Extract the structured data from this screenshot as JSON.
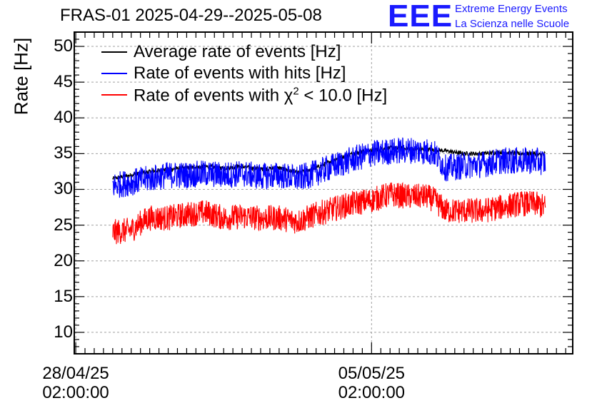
{
  "chart_data": {
    "type": "line",
    "title": "FRAS-01 2025-04-29--2025-05-08",
    "ylabel": "Rate [Hz]",
    "xlabel": "",
    "ylim": [
      7,
      52
    ],
    "yticks": [
      10,
      15,
      20,
      25,
      30,
      35,
      40,
      45,
      50
    ],
    "ytick_labels": [
      "10",
      "15",
      "20",
      "25",
      "30",
      "35",
      "40",
      "45",
      "50"
    ],
    "xlim_days": [
      -0.02,
      6.72
    ],
    "x_unit": "days since 28/04/25 02:00:00",
    "xticks": [
      {
        "value": 0,
        "line1": "28/04/25",
        "line2": "02:00:00"
      },
      {
        "value": 4,
        "line1": "05/05/25",
        "line2": "02:00:00"
      }
    ],
    "grid": true,
    "legend_position": "top-left",
    "series": [
      {
        "name": "Average rate of events [Hz]",
        "color": "#000000",
        "x": [
          0.5,
          0.75,
          1.0,
          1.25,
          1.5,
          1.75,
          2.0,
          2.25,
          2.5,
          2.75,
          3.0,
          3.25,
          3.5,
          3.75,
          4.0,
          4.25,
          4.5,
          4.75,
          5.0,
          5.25,
          5.5,
          5.75,
          6.0,
          6.25,
          6.2,
          6.35
        ],
        "values": [
          31.5,
          32.0,
          32.5,
          32.8,
          33.0,
          33.2,
          33.0,
          33.2,
          32.8,
          33.0,
          32.3,
          33.0,
          34.2,
          35.0,
          35.5,
          35.8,
          35.7,
          35.6,
          35.4,
          35.0,
          35.0,
          35.2,
          35.0,
          34.8,
          35.0,
          35.0
        ],
        "noise": 0.6
      },
      {
        "name": "Rate of events with hits [Hz]",
        "color": "#0000ff",
        "x": [
          0.5,
          0.75,
          1.0,
          1.25,
          1.5,
          1.75,
          2.0,
          2.25,
          2.5,
          2.75,
          3.0,
          3.25,
          3.5,
          3.75,
          4.0,
          4.25,
          4.5,
          4.75,
          4.85,
          5.0,
          5.25,
          5.5,
          5.75,
          6.0,
          6.2,
          6.35
        ],
        "values": [
          30.5,
          31.0,
          31.5,
          32.0,
          32.0,
          32.2,
          32.0,
          32.2,
          31.8,
          32.0,
          31.5,
          32.3,
          33.3,
          34.2,
          35.0,
          35.3,
          35.5,
          35.3,
          35.0,
          33.0,
          33.3,
          33.5,
          34.0,
          34.0,
          34.0,
          33.8
        ],
        "noise": 1.9
      },
      {
        "name": "Rate of events with χ² < 10.0 [Hz]",
        "legend_prefix": "Rate of events with ",
        "legend_symbol": "χ",
        "legend_sup": "2",
        "legend_suffix": " < 10.0 [Hz]",
        "color": "#ff0000",
        "x": [
          0.5,
          0.75,
          0.9,
          1.0,
          1.25,
          1.5,
          1.75,
          2.0,
          2.25,
          2.5,
          2.75,
          3.0,
          3.25,
          3.5,
          3.75,
          4.0,
          4.25,
          4.5,
          4.75,
          4.85,
          5.0,
          5.25,
          5.5,
          5.75,
          6.0,
          6.2,
          6.35
        ],
        "values": [
          24.0,
          24.3,
          25.5,
          26.0,
          26.0,
          26.5,
          26.8,
          26.0,
          26.2,
          26.0,
          26.0,
          25.5,
          26.5,
          27.3,
          28.0,
          28.5,
          29.3,
          29.0,
          29.0,
          28.5,
          27.0,
          27.0,
          27.0,
          27.5,
          28.0,
          28.0,
          27.5
        ],
        "noise": 1.8
      }
    ]
  },
  "logo": {
    "text": "EEE",
    "line1": "Extreme Energy Events",
    "line2": "La Scienza nelle Scuole"
  }
}
